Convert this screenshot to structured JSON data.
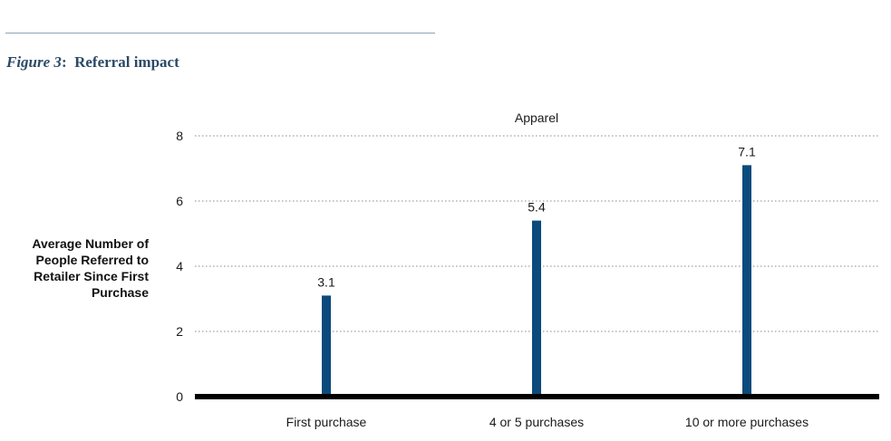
{
  "figure": {
    "label": "Figure 3",
    "separator": ":",
    "title": "Referral impact"
  },
  "chart_data": {
    "type": "bar",
    "title": "Apparel",
    "ylabel": "Average Number of People Referred to Retailer Since First Purchase",
    "xlabel": "",
    "categories": [
      "First purchase",
      "4 or 5 purchases",
      "10 or more purchases"
    ],
    "values": [
      3.1,
      5.4,
      7.1
    ],
    "data_labels": [
      "3.1",
      "5.4",
      "7.1"
    ],
    "ylim": [
      0,
      8
    ],
    "yticks": [
      0,
      2,
      4,
      6,
      8
    ],
    "grid": true,
    "bar_color": "#0b4a7c",
    "axis_color": "#000000"
  }
}
